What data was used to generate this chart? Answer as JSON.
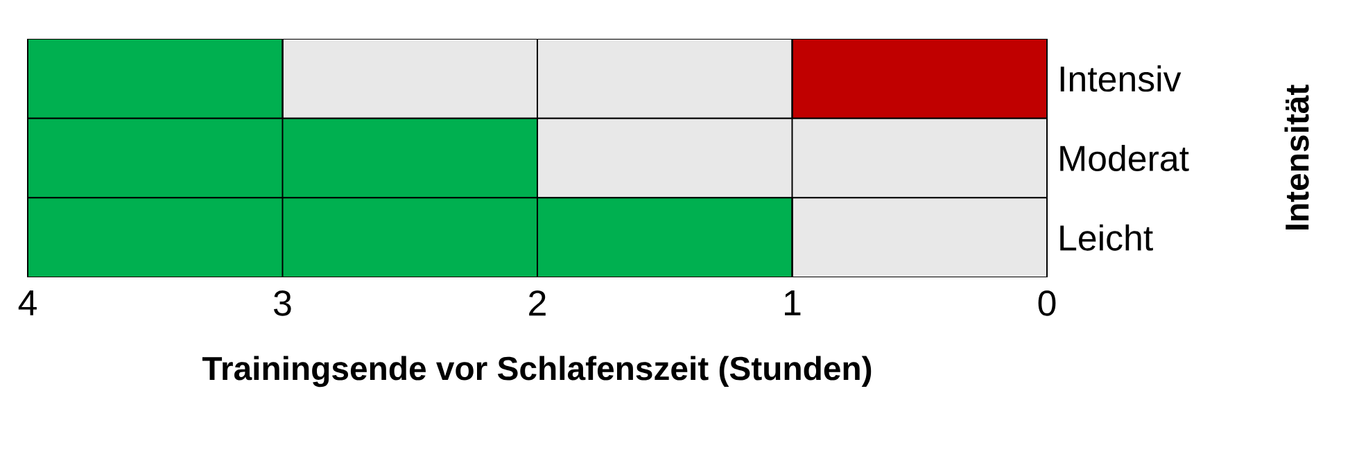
{
  "chart_data": {
    "type": "bar",
    "orientation": "horizontal",
    "stacked": true,
    "xlabel": "Trainingsende vor Schlafenszeit (Stunden)",
    "ylabel": "Intensität",
    "categories": [
      "Intensiv",
      "Moderat",
      "Leicht"
    ],
    "series": [
      {
        "color": "#c00000",
        "values": [
          1,
          null,
          null
        ]
      },
      {
        "color": "#e8e8e8",
        "values": [
          2,
          2,
          1
        ]
      },
      {
        "color": "#00b050",
        "values": [
          1,
          2,
          3
        ]
      }
    ],
    "xlim": [
      4,
      0
    ],
    "xticks": [
      4,
      3,
      2,
      1,
      0
    ],
    "grid": "x"
  }
}
